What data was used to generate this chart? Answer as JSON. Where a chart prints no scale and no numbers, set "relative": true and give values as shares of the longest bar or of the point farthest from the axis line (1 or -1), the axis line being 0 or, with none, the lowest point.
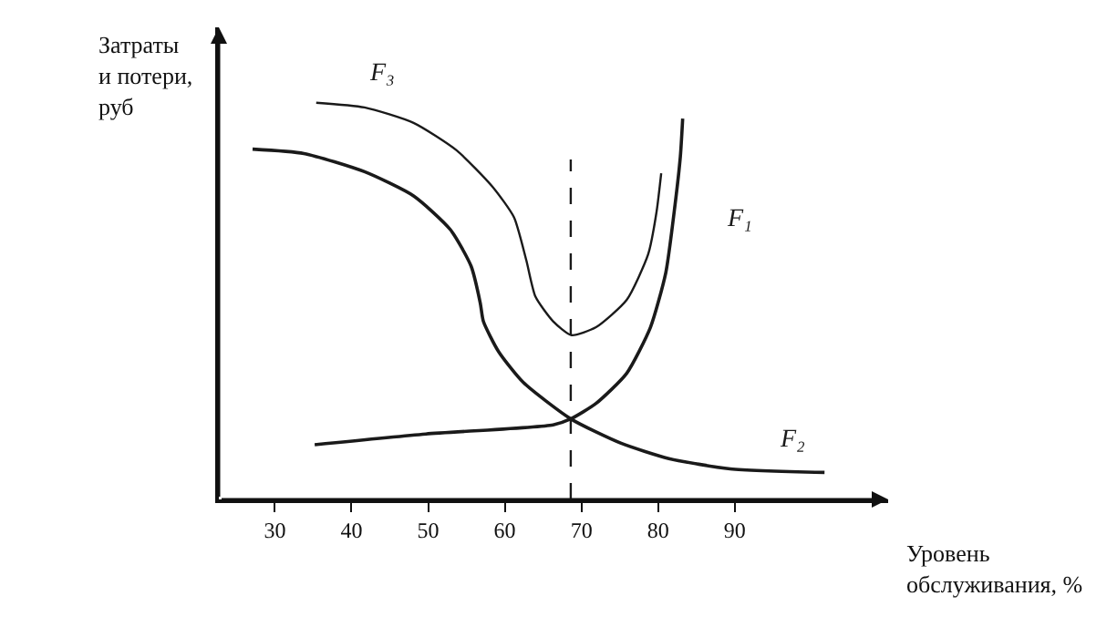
{
  "chart_data": {
    "type": "line",
    "relative": true,
    "xlabel": "Уровень\nобслуживания, %",
    "ylabel": "Затраты\nи потери,\nруб",
    "xlim": [
      22.7,
      110
    ],
    "xticks": [
      30,
      40,
      50,
      60,
      70,
      80,
      90
    ],
    "line_style": "solid",
    "ref_lines": [
      {
        "axis": "x",
        "value": 68.6,
        "color": "#1a1a1a",
        "line_style": "dashed"
      }
    ],
    "series": [
      {
        "name": "F₁",
        "color": "#1a1a1a",
        "x": [
          35.2,
          49.7,
          66.3,
          68.6,
          71.9,
          75.9,
          79.0,
          81.0,
          82.2,
          82.9,
          83.2
        ],
        "values": [
          0.138,
          0.165,
          0.188,
          0.203,
          0.242,
          0.318,
          0.434,
          0.572,
          0.742,
          0.865,
          0.96
        ]
      },
      {
        "name": "F₂",
        "color": "#1a1a1a",
        "x": [
          27.1,
          33.8,
          41.7,
          48.1,
          52.9,
          55.6,
          56.8,
          57.2,
          59.2,
          62.4,
          68.6,
          75.1,
          81.4,
          89.4,
          101.7
        ],
        "values": [
          0.883,
          0.872,
          0.826,
          0.765,
          0.68,
          0.588,
          0.495,
          0.449,
          0.372,
          0.295,
          0.203,
          0.142,
          0.103,
          0.077,
          0.068
        ]
      },
      {
        "name": "F₃",
        "color": "#1a1a1a",
        "x": [
          35.4,
          41.7,
          48.1,
          53.7,
          58.4,
          61.2,
          62.8,
          64.0,
          66.3,
          68.7,
          71.9,
          75.9,
          78.7,
          79.8,
          80.4
        ],
        "values": [
          1.0,
          0.988,
          0.949,
          0.88,
          0.788,
          0.711,
          0.603,
          0.511,
          0.449,
          0.414,
          0.434,
          0.503,
          0.618,
          0.726,
          0.822
        ]
      }
    ]
  }
}
